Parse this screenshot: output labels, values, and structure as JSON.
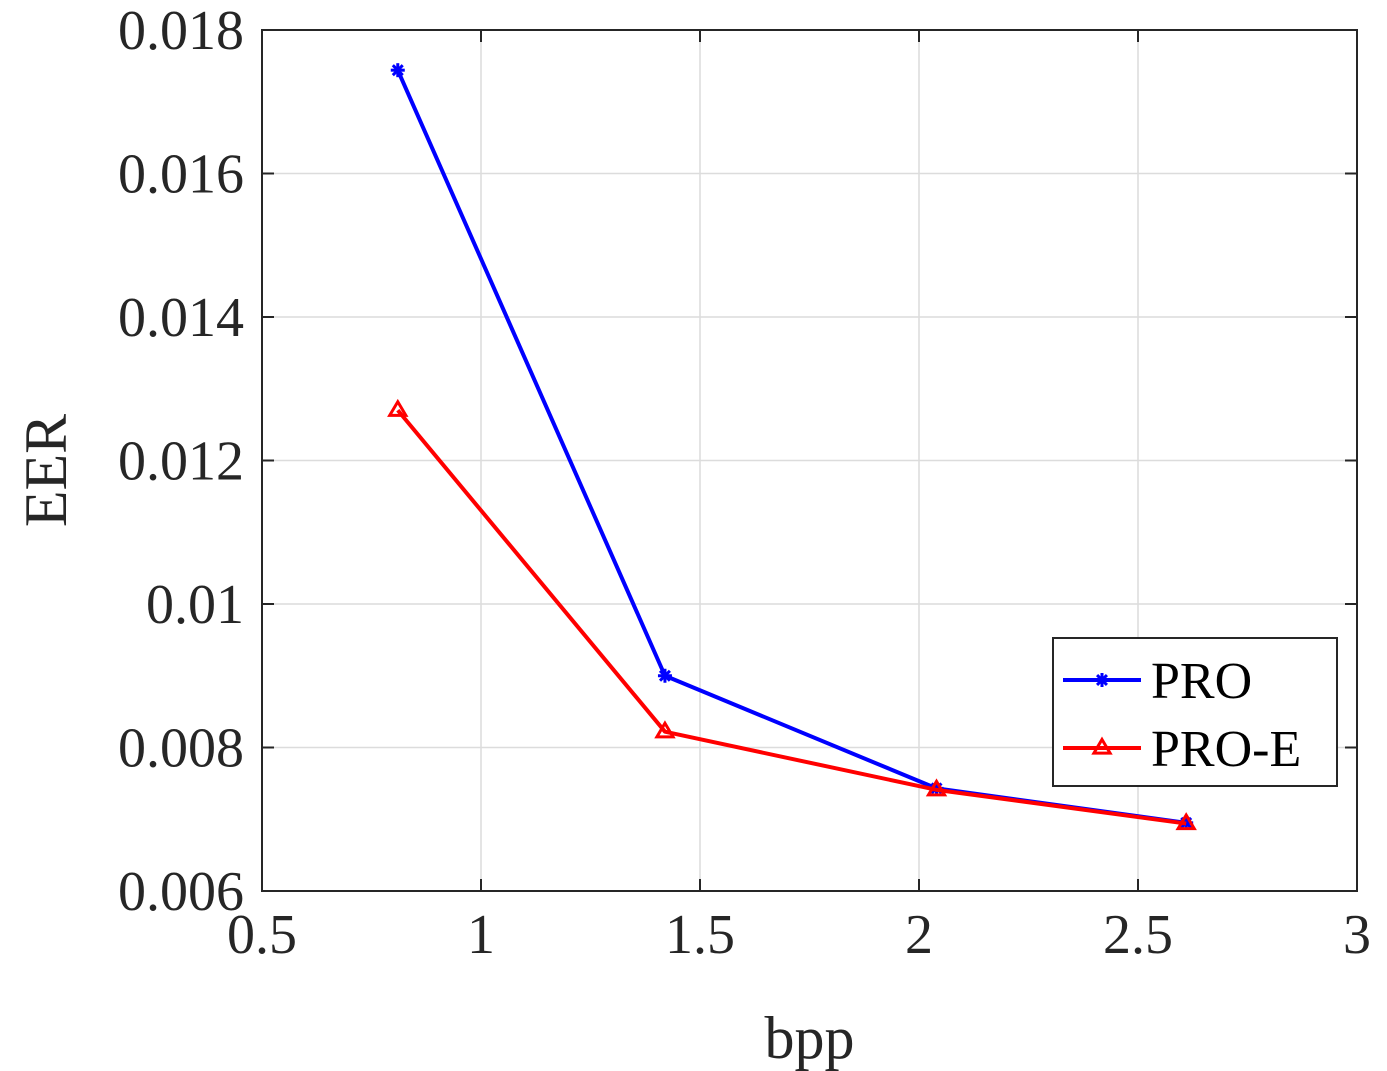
{
  "chart_data": {
    "type": "line",
    "title": "",
    "xlabel": "bpp",
    "ylabel": "EER",
    "xlim": [
      0.5,
      3
    ],
    "ylim": [
      0.006,
      0.018
    ],
    "xticks": [
      0.5,
      1,
      1.5,
      2,
      2.5,
      3
    ],
    "xtick_labels": [
      "0.5",
      "1",
      "1.5",
      "2",
      "2.5",
      "3"
    ],
    "yticks": [
      0.006,
      0.008,
      0.01,
      0.012,
      0.014,
      0.016,
      0.018
    ],
    "ytick_labels": [
      "0.006",
      "0.008",
      "0.01",
      "0.012",
      "0.014",
      "0.016",
      "0.018"
    ],
    "grid": true,
    "legend_position": "right",
    "series": [
      {
        "name": "PRO",
        "color": "#0000ff",
        "marker": "asterisk",
        "x": [
          0.81,
          1.42,
          2.04,
          2.61
        ],
        "y": [
          0.01744,
          0.009,
          0.00743,
          0.00695
        ]
      },
      {
        "name": "PRO-E",
        "color": "#ff0000",
        "marker": "triangle",
        "x": [
          0.81,
          1.42,
          2.04,
          2.61
        ],
        "y": [
          0.0127,
          0.00822,
          0.00741,
          0.00694
        ]
      }
    ]
  }
}
